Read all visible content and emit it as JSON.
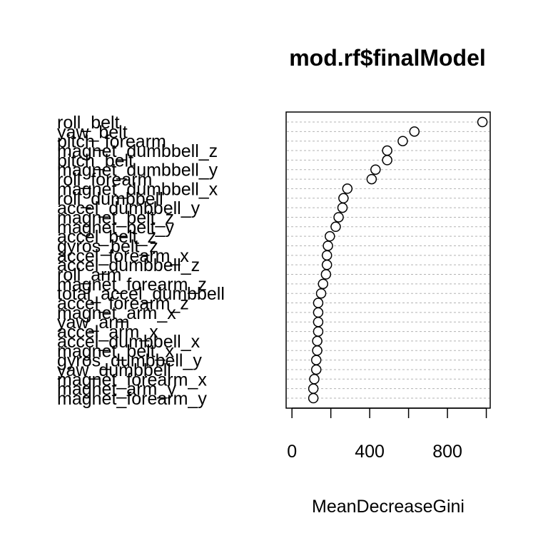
{
  "chart_data": {
    "type": "scatter",
    "title": "mod.rf$finalModel",
    "xlabel": "MeanDecreaseGini",
    "ylabel": "",
    "xlim": [
      -30,
      1020
    ],
    "x_ticks": [
      0,
      200,
      400,
      600,
      800,
      1000
    ],
    "x_tick_labels": [
      "0",
      "",
      "400",
      "",
      "800",
      ""
    ],
    "grid": "dotted horizontal guide lines",
    "categories": [
      "roll_belt",
      "yaw_belt",
      "pitch_forearm",
      "magnet_dumbbell_z",
      "pitch_belt",
      "magnet_dumbbell_y",
      "roll_forearm",
      "magnet_dumbbell_x",
      "roll_dumbbell",
      "accel_dumbbell_y",
      "magnet_belt_z",
      "magnet_belt_y",
      "accel_belt_z",
      "gyros_belt_z",
      "accel_forearm_x",
      "accel_dumbbell_z",
      "roll_arm",
      "magnet_forearm_z",
      "total_accel_dumbbell",
      "accel_forearm_z",
      "magnet_arm_x",
      "yaw_arm",
      "accel_arm_x",
      "accel_dumbbell_x",
      "magnet_belt_x",
      "gyros_dumbbell_y",
      "yaw_dumbbell",
      "magnet_forearm_x",
      "magnet_arm_y",
      "magnet_forearm_y"
    ],
    "values": [
      980,
      630,
      570,
      490,
      490,
      430,
      410,
      285,
      265,
      260,
      240,
      225,
      195,
      185,
      180,
      180,
      175,
      160,
      150,
      135,
      135,
      135,
      135,
      130,
      130,
      125,
      125,
      115,
      110,
      110
    ]
  }
}
